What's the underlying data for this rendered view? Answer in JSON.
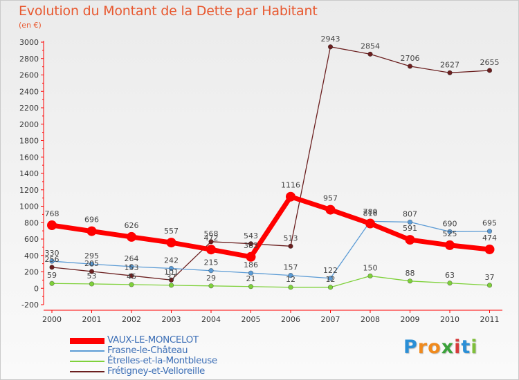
{
  "chart_data": {
    "type": "line",
    "title": "Evolution du Montant de la Dette par Habitant",
    "subtitle": "(en €)",
    "xlabel": "",
    "ylabel": "",
    "ylim": [
      -200,
      3000
    ],
    "yticks": [
      -200,
      0,
      200,
      400,
      600,
      800,
      1000,
      1200,
      1400,
      1600,
      1800,
      2000,
      2200,
      2400,
      2600,
      2800,
      3000
    ],
    "categories": [
      "2000",
      "2001",
      "2002",
      "2003",
      "2004",
      "2005",
      "2006",
      "2007",
      "2008",
      "2009",
      "2010",
      "2011"
    ],
    "grid": false,
    "legend_position": "bottom-left",
    "series": [
      {
        "name": "VAUX-LE-MONCELOT",
        "color": "#ff0000",
        "values": [
          768,
          696,
          626,
          557,
          472,
          383,
          1116,
          957,
          789,
          591,
          525,
          474
        ],
        "labels": [
          "768",
          "696",
          "626",
          "557",
          "472",
          "383",
          "1116",
          "957",
          "789",
          "591",
          "525",
          "474"
        ]
      },
      {
        "name": "Frasne-le-Château",
        "color": "#5b9bd5",
        "values": [
          330,
          295,
          264,
          242,
          215,
          186,
          157,
          122,
          816,
          807,
          690,
          695
        ],
        "labels": [
          "330",
          "295",
          "264",
          "242",
          "215",
          "186",
          "157",
          "122",
          "816",
          "807",
          "690",
          "695"
        ]
      },
      {
        "name": "Étrelles-et-la-Montbleuse",
        "color": "#7fd13b",
        "values": [
          59,
          53,
          45,
          37,
          29,
          21,
          12,
          12,
          150,
          88,
          63,
          37
        ],
        "labels": [
          "59",
          "53",
          "45",
          "37",
          "29",
          "21",
          "12",
          "12",
          "150",
          "88",
          "63",
          "37"
        ]
      },
      {
        "name": "Frétigney-et-Velloreille",
        "color": "#6b1f1f",
        "values": [
          256,
          205,
          153,
          101,
          568,
          543,
          513,
          2943,
          2854,
          2706,
          2627,
          2655
        ],
        "labels": [
          "256",
          "205",
          "153",
          "101",
          "568",
          "543",
          "513",
          "2943",
          "2854",
          "2706",
          "2627",
          "2655"
        ]
      }
    ]
  },
  "logo": {
    "letters": [
      "P",
      "r",
      "o",
      "x",
      "i",
      "t",
      "i"
    ],
    "colors": [
      "#2b8fd6",
      "#f08a1d",
      "#f08a1d",
      "#3aa23a",
      "#d63b3b",
      "#2b8fd6",
      "#7fbf3a"
    ]
  }
}
